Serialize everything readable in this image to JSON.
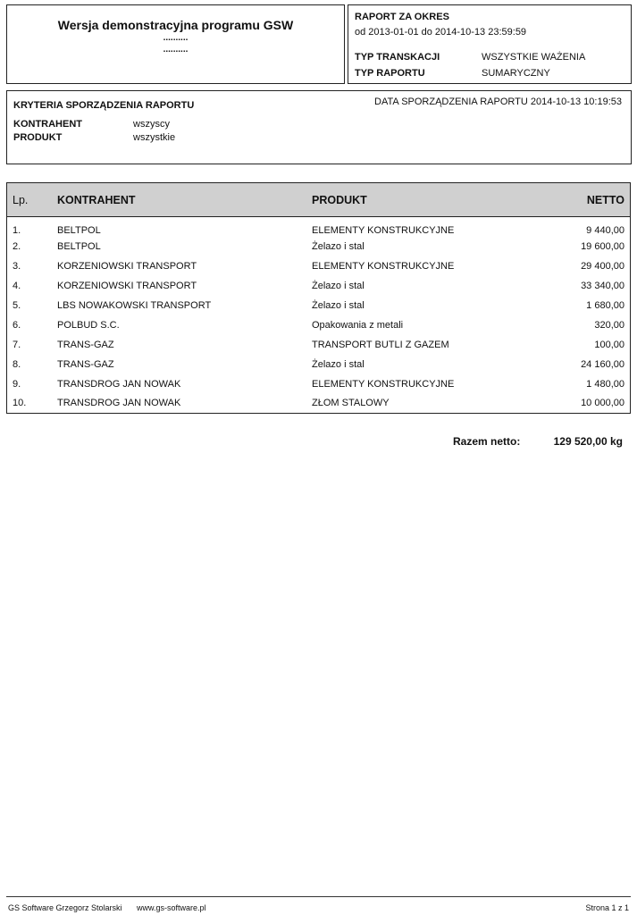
{
  "header": {
    "title": "Wersja demonstracyjna programu GSW",
    "dots1": "..........",
    "dots2": ".........."
  },
  "period": {
    "label": "RAPORT  ZA OKRES",
    "range": "od  2013-01-01  do  2014-10-13 23:59:59",
    "trans_label": "TYP TRANSKACJI",
    "trans_value": "WSZYSTKIE WAŻENIA",
    "type_label": "TYP RAPORTU",
    "type_value": "SUMARYCZNY"
  },
  "criteria": {
    "title": "KRYTERIA SPORZĄDZENIA RAPORTU",
    "date": "DATA SPORZĄDZENIA RAPORTU 2014-10-13 10:19:53",
    "k_label": "KONTRAHENT",
    "k_value": "wszyscy",
    "p_label": "PRODUKT",
    "p_value": "wszystkie"
  },
  "table": {
    "columns": [
      "Lp.",
      "KONTRAHENT",
      "PRODUKT",
      "NETTO"
    ],
    "rows": [
      [
        "1.",
        "BELTPOL",
        "ELEMENTY KONSTRUKCYJNE",
        "9 440,00"
      ],
      [
        "2.",
        "BELTPOL",
        "Żelazo i stal",
        "19 600,00"
      ],
      [
        "3.",
        "KORZENIOWSKI TRANSPORT",
        "ELEMENTY KONSTRUKCYJNE",
        "29 400,00"
      ],
      [
        "4.",
        "KORZENIOWSKI TRANSPORT",
        "Żelazo i stal",
        "33 340,00"
      ],
      [
        "5.",
        "LBS NOWAKOWSKI TRANSPORT",
        "Żelazo i stal",
        "1 680,00"
      ],
      [
        "6.",
        "POLBUD S.C.",
        "Opakowania z metali",
        "320,00"
      ],
      [
        "7.",
        "TRANS-GAZ",
        "TRANSPORT BUTLI Z GAZEM",
        "100,00"
      ],
      [
        "8.",
        "TRANS-GAZ",
        "Żelazo i stal",
        "24 160,00"
      ],
      [
        "9.",
        "TRANSDROG JAN NOWAK",
        "ELEMENTY KONSTRUKCYJNE",
        "1 480,00"
      ],
      [
        "10.",
        "TRANSDROG JAN NOWAK",
        "ZŁOM STALOWY",
        "10 000,00"
      ]
    ]
  },
  "total": {
    "label": "Razem netto:",
    "value": "129 520,00  kg"
  },
  "footer": {
    "company": "GS Software Grzegorz Stolarski",
    "url": "www.gs-software.pl",
    "page": "Strona 1 z  1"
  }
}
